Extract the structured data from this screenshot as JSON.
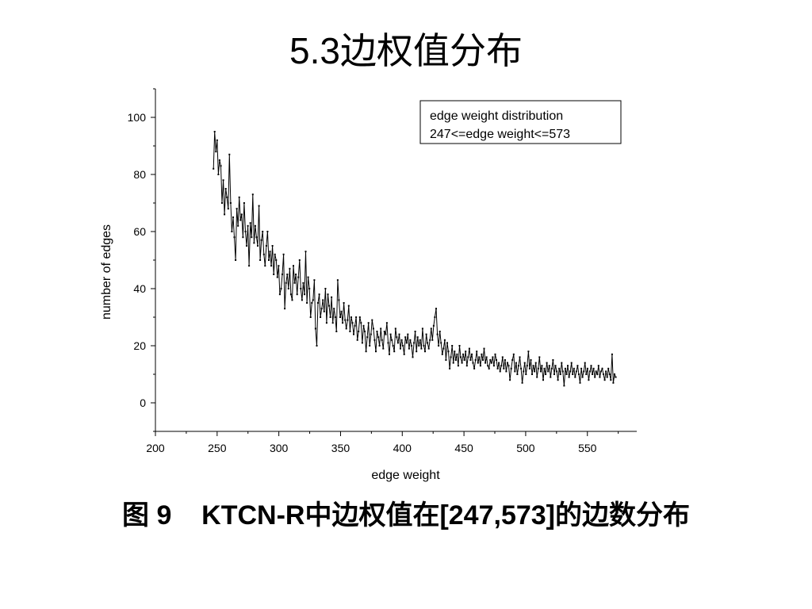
{
  "slide": {
    "title": "5.3边权值分布",
    "caption": "图 9    KTCN-R中边权值在[247,573]的边数分布"
  },
  "chart_data": {
    "type": "line",
    "xlabel": "edge weight",
    "ylabel": "number of edges",
    "xlim": [
      200,
      590
    ],
    "ylim": [
      -10,
      110
    ],
    "x_ticks": [
      200,
      250,
      300,
      350,
      400,
      450,
      500,
      550
    ],
    "y_ticks": [
      0,
      20,
      40,
      60,
      80,
      100
    ],
    "legend": {
      "placement": "top-right",
      "lines": [
        "edge weight distribution",
        "247<=edge weight<=573"
      ]
    },
    "series": [
      {
        "x_start": 247,
        "x_end": 573,
        "y": [
          82,
          95,
          88,
          92,
          80,
          85,
          83,
          70,
          78,
          66,
          75,
          72,
          68,
          87,
          70,
          60,
          65,
          58,
          50,
          68,
          62,
          72,
          64,
          66,
          58,
          70,
          60,
          55,
          62,
          48,
          63,
          58,
          73,
          56,
          62,
          58,
          55,
          69,
          50,
          57,
          60,
          52,
          48,
          55,
          60,
          50,
          53,
          48,
          55,
          45,
          52,
          50,
          44,
          48,
          38,
          40,
          45,
          52,
          33,
          42,
          45,
          40,
          47,
          38,
          36,
          48,
          42,
          45,
          38,
          44,
          50,
          40,
          36,
          42,
          38,
          53,
          35,
          44,
          40,
          30,
          35,
          36,
          43,
          26,
          20,
          35,
          38,
          30,
          33,
          36,
          32,
          40,
          28,
          38,
          34,
          30,
          37,
          28,
          33,
          30,
          25,
          43,
          36,
          30,
          32,
          28,
          35,
          29,
          26,
          29,
          34,
          25,
          30,
          28,
          24,
          27,
          30,
          22,
          25,
          30,
          28,
          21,
          27,
          25,
          18,
          23,
          28,
          20,
          24,
          29,
          26,
          22,
          18,
          25,
          23,
          20,
          26,
          22,
          19,
          25,
          24,
          28,
          21,
          17,
          24,
          22,
          20,
          18,
          26,
          23,
          21,
          24,
          19,
          22,
          20,
          17,
          23,
          21,
          24,
          19,
          22,
          20,
          16,
          21,
          25,
          18,
          23,
          20,
          22,
          19,
          26,
          20,
          18,
          24,
          21,
          19,
          22,
          26,
          22,
          27,
          30,
          33,
          24,
          20,
          25,
          21,
          17,
          19,
          22,
          15,
          21,
          18,
          12,
          16,
          20,
          14,
          18,
          15,
          17,
          13,
          20,
          16,
          14,
          17,
          15,
          18,
          13,
          16,
          19,
          15,
          17,
          14,
          12,
          15,
          18,
          14,
          16,
          13,
          17,
          15,
          19,
          14,
          16,
          13,
          12,
          15,
          14,
          16,
          13,
          17,
          15,
          12,
          14,
          11,
          13,
          16,
          12,
          15,
          11,
          14,
          13,
          8,
          12,
          15,
          17,
          11,
          14,
          10,
          13,
          16,
          12,
          7,
          11,
          14,
          10,
          13,
          18,
          12,
          15,
          10,
          13,
          11,
          14,
          9,
          12,
          16,
          11,
          13,
          8,
          12,
          10,
          14,
          11,
          13,
          9,
          12,
          15,
          10,
          13,
          11,
          8,
          12,
          10,
          14,
          11,
          6,
          12,
          10,
          13,
          9,
          11,
          14,
          10,
          12,
          9,
          11,
          13,
          10,
          7,
          12,
          9,
          11,
          14,
          10,
          12,
          8,
          11,
          13,
          10,
          12,
          9,
          11,
          10,
          13,
          9,
          11,
          12,
          10,
          8,
          11,
          9,
          12,
          10,
          8,
          17,
          7,
          10,
          9
        ]
      }
    ]
  }
}
